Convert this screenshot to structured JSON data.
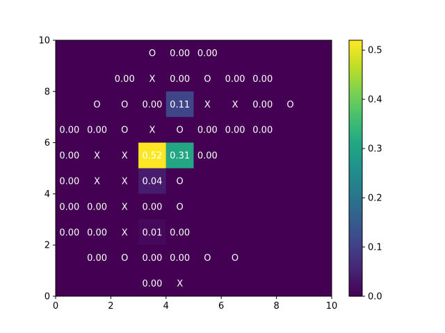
{
  "chart_data": {
    "type": "heatmap",
    "title": "",
    "xlabel": "",
    "ylabel": "",
    "xlim": [
      0,
      10
    ],
    "ylim": [
      0,
      10
    ],
    "x_ticks": [
      "0",
      "2",
      "4",
      "6",
      "8",
      "10"
    ],
    "y_ticks": [
      "0",
      "2",
      "4",
      "6",
      "8",
      "10"
    ],
    "colormap": "viridis",
    "colorbar_range": [
      0,
      0.52
    ],
    "colorbar_ticks": [
      "0.0",
      "0.1",
      "0.2",
      "0.3",
      "0.4",
      "0.5"
    ],
    "colorbar_tick_values": [
      0.0,
      0.1,
      0.2,
      0.3,
      0.4,
      0.5
    ],
    "cells": [
      {
        "x": 3,
        "y": 9,
        "value": 0,
        "label": "O"
      },
      {
        "x": 4,
        "y": 9,
        "value": 0,
        "label": "0.00"
      },
      {
        "x": 5,
        "y": 9,
        "value": 0,
        "label": "0.00"
      },
      {
        "x": 2,
        "y": 8,
        "value": 0,
        "label": "0.00"
      },
      {
        "x": 3,
        "y": 8,
        "value": 0,
        "label": "X"
      },
      {
        "x": 4,
        "y": 8,
        "value": 0,
        "label": "0.00"
      },
      {
        "x": 5,
        "y": 8,
        "value": 0,
        "label": "O"
      },
      {
        "x": 6,
        "y": 8,
        "value": 0,
        "label": "0.00"
      },
      {
        "x": 7,
        "y": 8,
        "value": 0,
        "label": "0.00"
      },
      {
        "x": 1,
        "y": 7,
        "value": 0,
        "label": "O"
      },
      {
        "x": 2,
        "y": 7,
        "value": 0,
        "label": "O"
      },
      {
        "x": 3,
        "y": 7,
        "value": 0,
        "label": "0.00"
      },
      {
        "x": 4,
        "y": 7,
        "value": 0.11,
        "label": "0.11"
      },
      {
        "x": 5,
        "y": 7,
        "value": 0,
        "label": "X"
      },
      {
        "x": 6,
        "y": 7,
        "value": 0,
        "label": "X"
      },
      {
        "x": 7,
        "y": 7,
        "value": 0,
        "label": "0.00"
      },
      {
        "x": 8,
        "y": 7,
        "value": 0,
        "label": "O"
      },
      {
        "x": 0,
        "y": 6,
        "value": 0,
        "label": "0.00"
      },
      {
        "x": 1,
        "y": 6,
        "value": 0,
        "label": "0.00"
      },
      {
        "x": 2,
        "y": 6,
        "value": 0,
        "label": "O"
      },
      {
        "x": 3,
        "y": 6,
        "value": 0,
        "label": "X"
      },
      {
        "x": 4,
        "y": 6,
        "value": 0,
        "label": "O"
      },
      {
        "x": 5,
        "y": 6,
        "value": 0,
        "label": "0.00"
      },
      {
        "x": 6,
        "y": 6,
        "value": 0,
        "label": "0.00"
      },
      {
        "x": 7,
        "y": 6,
        "value": 0,
        "label": "0.00"
      },
      {
        "x": 0,
        "y": 5,
        "value": 0,
        "label": "0.00"
      },
      {
        "x": 1,
        "y": 5,
        "value": 0,
        "label": "X"
      },
      {
        "x": 2,
        "y": 5,
        "value": 0,
        "label": "X"
      },
      {
        "x": 3,
        "y": 5,
        "value": 0.52,
        "label": "0.52"
      },
      {
        "x": 4,
        "y": 5,
        "value": 0.31,
        "label": "0.31"
      },
      {
        "x": 5,
        "y": 5,
        "value": 0,
        "label": "0.00"
      },
      {
        "x": 0,
        "y": 4,
        "value": 0,
        "label": "0.00"
      },
      {
        "x": 1,
        "y": 4,
        "value": 0,
        "label": "X"
      },
      {
        "x": 2,
        "y": 4,
        "value": 0,
        "label": "X"
      },
      {
        "x": 3,
        "y": 4,
        "value": 0.04,
        "label": "0.04"
      },
      {
        "x": 4,
        "y": 4,
        "value": 0,
        "label": "O"
      },
      {
        "x": 0,
        "y": 3,
        "value": 0,
        "label": "0.00"
      },
      {
        "x": 1,
        "y": 3,
        "value": 0,
        "label": "0.00"
      },
      {
        "x": 2,
        "y": 3,
        "value": 0,
        "label": "X"
      },
      {
        "x": 3,
        "y": 3,
        "value": 0,
        "label": "0.00"
      },
      {
        "x": 4,
        "y": 3,
        "value": 0,
        "label": "O"
      },
      {
        "x": 0,
        "y": 2,
        "value": 0,
        "label": "0.00"
      },
      {
        "x": 1,
        "y": 2,
        "value": 0,
        "label": "0.00"
      },
      {
        "x": 2,
        "y": 2,
        "value": 0,
        "label": "X"
      },
      {
        "x": 3,
        "y": 2,
        "value": 0.01,
        "label": "0.01"
      },
      {
        "x": 4,
        "y": 2,
        "value": 0,
        "label": "0.00"
      },
      {
        "x": 1,
        "y": 1,
        "value": 0,
        "label": "0.00"
      },
      {
        "x": 2,
        "y": 1,
        "value": 0,
        "label": "O"
      },
      {
        "x": 3,
        "y": 1,
        "value": 0,
        "label": "0.00"
      },
      {
        "x": 4,
        "y": 1,
        "value": 0,
        "label": "0.00"
      },
      {
        "x": 5,
        "y": 1,
        "value": 0,
        "label": "O"
      },
      {
        "x": 6,
        "y": 1,
        "value": 0,
        "label": "O"
      },
      {
        "x": 3,
        "y": 0,
        "value": 0,
        "label": "0.00"
      },
      {
        "x": 4,
        "y": 0,
        "value": 0,
        "label": "X"
      }
    ]
  }
}
